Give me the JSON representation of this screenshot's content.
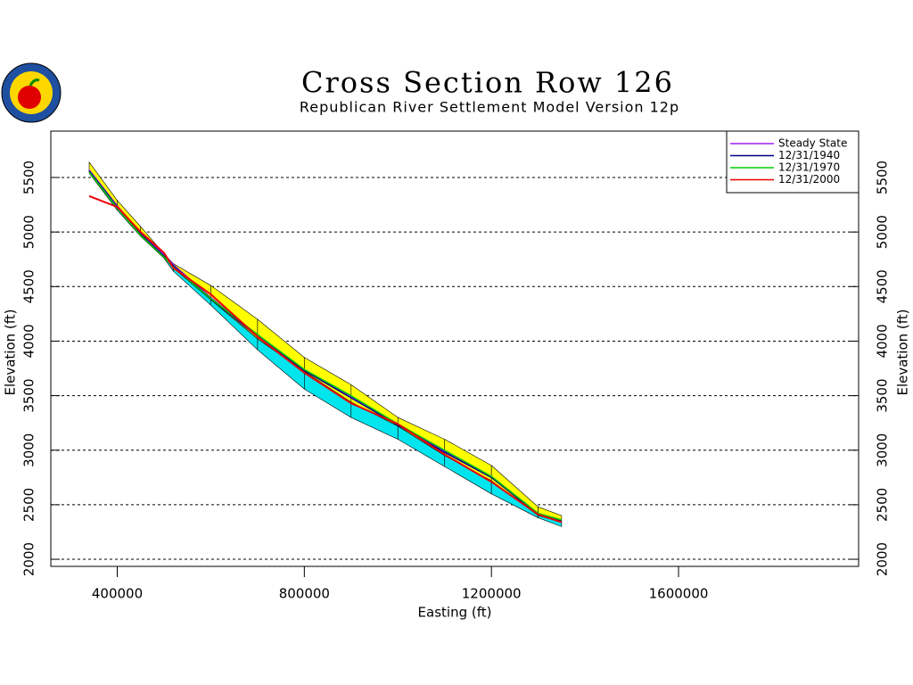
{
  "chart_data": {
    "type": "line",
    "title": "Cross Section Row 126",
    "subtitle": "Republican River Settlement Model Version 12p",
    "x_label": "Easting (ft)",
    "y_label": "Elevation (ft)",
    "x": [
      340000,
      400000,
      450000,
      500000,
      520000,
      600000,
      700000,
      800000,
      900000,
      1000000,
      1100000,
      1200000,
      1300000,
      1350000
    ],
    "areas": [
      {
        "color": "#ffff00",
        "upper": [
          5640,
          5290,
          5050,
          4800,
          4710,
          4510,
          4200,
          3850,
          3600,
          3300,
          3100,
          2860,
          2480,
          2400
        ],
        "lower": [
          5560,
          5220,
          4970,
          4770,
          4670,
          4380,
          4020,
          3720,
          3440,
          3220,
          2950,
          2720,
          2400,
          2340
        ]
      },
      {
        "color": "#00e5ee",
        "upper": [
          5560,
          5220,
          4970,
          4770,
          4670,
          4380,
          4020,
          3720,
          3440,
          3220,
          2950,
          2720,
          2400,
          2340
        ],
        "lower": [
          5540,
          5200,
          4960,
          4760,
          4640,
          4330,
          3920,
          3560,
          3300,
          3100,
          2850,
          2600,
          2380,
          2300
        ]
      }
    ],
    "series": [
      {
        "name": "Steady State",
        "color": "#a020f0",
        "values": [
          5570,
          5240,
          4990,
          4790,
          4700,
          4400,
          4050,
          3740,
          3490,
          3240,
          2990,
          2760,
          2420,
          2360
        ]
      },
      {
        "name": "12/31/1940",
        "color": "#00008b",
        "values": [
          5560,
          5230,
          4980,
          4780,
          4690,
          4390,
          4040,
          3730,
          3480,
          3230,
          2980,
          2750,
          2410,
          2350
        ]
      },
      {
        "name": "12/31/1970",
        "color": "#00cd00",
        "values": [
          5550,
          5220,
          4970,
          4770,
          4680,
          4390,
          4060,
          3740,
          3500,
          3240,
          3000,
          2760,
          2420,
          2360
        ]
      },
      {
        "name": "12/31/2000",
        "color": "#ee0000",
        "values": [
          5330,
          5230,
          5000,
          4810,
          4670,
          4430,
          4040,
          3710,
          3430,
          3240,
          2960,
          2710,
          2410,
          2340
        ]
      }
    ],
    "xlim": [
      258000,
      1985000
    ],
    "ylim": [
      1935,
      5925
    ],
    "xticks": [
      400000,
      800000,
      1200000,
      1600000
    ],
    "yticks": [
      2000,
      2500,
      3000,
      3500,
      4000,
      4500,
      5000,
      5500
    ],
    "grid": true,
    "legend": "upper right"
  }
}
